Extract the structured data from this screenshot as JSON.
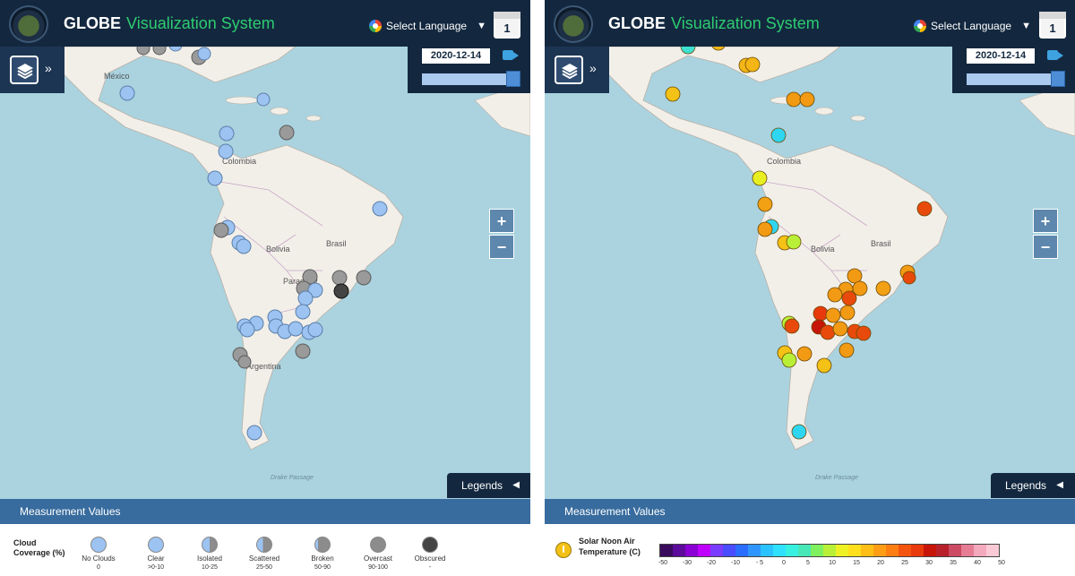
{
  "header": {
    "brand_globe": "GLOBE",
    "brand_visualization": "Visualization System",
    "language_label": "Select Language",
    "calendar_day": "1"
  },
  "timeline": {
    "date": "2020-12-14"
  },
  "map": {
    "zoom_in": "+",
    "zoom_out": "−",
    "labels": [
      "México",
      "Colombia",
      "Bolivia",
      "Brasil",
      "Paraguay",
      "Argentina",
      "Drake Passage"
    ]
  },
  "legends_tab": "Legends",
  "measurement_values": "Measurement Values",
  "cloud_legend": {
    "title": "Cloud Coverage (%)",
    "items": [
      {
        "name": "No Clouds",
        "range": "0",
        "kind": "none"
      },
      {
        "name": "Clear",
        "range": ">0-10",
        "kind": "clear"
      },
      {
        "name": "Isolated",
        "range": "10-25",
        "kind": "isolated"
      },
      {
        "name": "Scattered",
        "range": "25-50",
        "kind": "scattered"
      },
      {
        "name": "Broken",
        "range": "50-90",
        "kind": "broken"
      },
      {
        "name": "Overcast",
        "range": "90-100",
        "kind": "overcast"
      },
      {
        "name": "Obscured",
        "range": "-",
        "kind": "obscured"
      }
    ]
  },
  "temp_legend": {
    "title": "Solar Noon Air Temperature (C)",
    "ticks": [
      "-50",
      "-30",
      "-20",
      "-10",
      "- 5",
      "0",
      "5",
      "10",
      "15",
      "20",
      "25",
      "30",
      "35",
      "40",
      "50"
    ],
    "colors": [
      "#3a0b5c",
      "#5c0b9a",
      "#8a00d4",
      "#c000ff",
      "#7a3cff",
      "#4a4cff",
      "#2b6dff",
      "#2f96ff",
      "#2bc3ff",
      "#2fe1ff",
      "#36f0e0",
      "#47e8b8",
      "#7ff05e",
      "#b9f037",
      "#eef224",
      "#ffde1c",
      "#ffbe16",
      "#ff9e15",
      "#ff7e12",
      "#f4550e",
      "#e83a0c",
      "#c8150a",
      "#b8202a",
      "#cc4a62",
      "#e67d95",
      "#f4a9bd",
      "#fbc9d5"
    ]
  }
}
